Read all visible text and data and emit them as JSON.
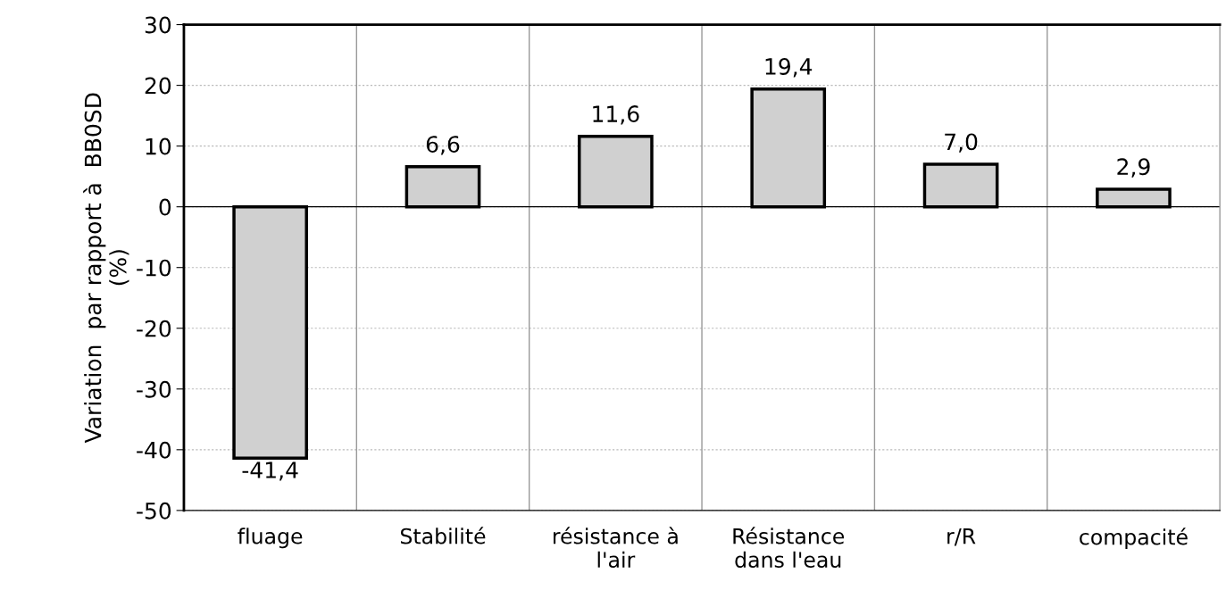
{
  "chart_data": {
    "type": "bar",
    "ylabel": "Variation  par rapport à  BB0SD\n(%)",
    "categories": [
      "fluage",
      "Stabilité",
      "résistance à\nl'air",
      "Résistance\ndans l'eau",
      "r/R",
      "compacité"
    ],
    "values": [
      -41.4,
      6.6,
      11.6,
      19.4,
      7.0,
      2.9
    ],
    "value_labels": [
      "-41,4",
      "6,6",
      "11,6",
      "19,4",
      "7,0",
      "2,9"
    ],
    "color": "#d0d0d0",
    "ylim": [
      -50,
      30
    ],
    "yticks": [
      -50,
      -40,
      -30,
      -20,
      -10,
      0,
      10,
      20,
      30
    ],
    "grid": true
  }
}
